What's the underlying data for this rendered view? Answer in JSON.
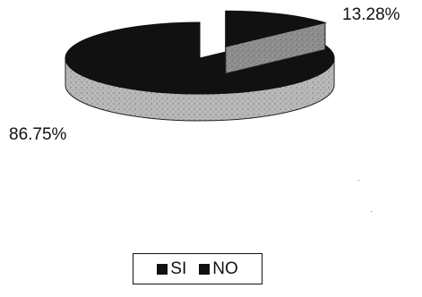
{
  "chart_data": {
    "type": "pie",
    "style": "3d-exploded",
    "slices": [
      {
        "name": "SI",
        "value": 13.28,
        "label": "13.28%",
        "color": "#111111",
        "side_color": "#8e8e8e",
        "exploded": true
      },
      {
        "name": "NO",
        "value": 86.75,
        "label": "86.75%",
        "color": "#111111",
        "side_color": "#b8b8b8",
        "exploded": false
      }
    ],
    "legend": {
      "placement": "bottom-center",
      "entries": [
        "SI",
        "NO"
      ]
    }
  }
}
